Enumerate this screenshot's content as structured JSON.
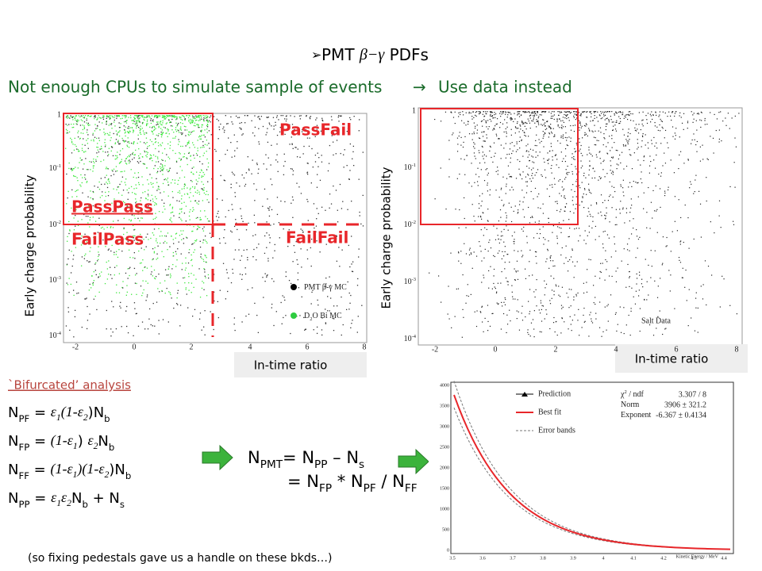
{
  "header": {
    "title": [
      [
        "PMT ",
        ""
      ],
      [
        "β−γ",
        "it"
      ],
      [
        " PDFs",
        ""
      ]
    ],
    "subtitle_left": "Not enough CPUs to simulate sample of events",
    "subtitle_right": "Use data instead"
  },
  "left_plot": {
    "ylabel": "Early charge probability",
    "xlabel": "In-time ratio",
    "yticks": [
      "1",
      [
        [
          "10",
          ""
        ],
        [
          "-1",
          "sup"
        ]
      ],
      [
        [
          "10",
          ""
        ],
        [
          "-2",
          "sup"
        ]
      ],
      [
        [
          "10",
          ""
        ],
        [
          "-3",
          "sup"
        ]
      ],
      [
        [
          "10",
          ""
        ],
        [
          "-4",
          "sup"
        ]
      ]
    ],
    "xticks": [
      "-2",
      "0",
      "2",
      "4",
      "6",
      "8"
    ],
    "regions": {
      "pass_fail": "PassFail",
      "pass_pass": "PassPass",
      "fail_pass": "FailPass",
      "fail_fail": "FailFail"
    },
    "legend": [
      [
        [
          "PMT β-γ MC",
          ""
        ]
      ],
      [
        [
          "D",
          ""
        ],
        [
          "2",
          "sub"
        ],
        [
          "O Bi MC",
          ""
        ]
      ]
    ]
  },
  "right_plot": {
    "ylabel": "Early charge probability",
    "xlabel": "In-time ratio",
    "yticks": [
      "1",
      [
        [
          "10",
          ""
        ],
        [
          "-1",
          "sup"
        ]
      ],
      [
        [
          "10",
          ""
        ],
        [
          "-2",
          "sup"
        ]
      ],
      [
        [
          "10",
          ""
        ],
        [
          "-3",
          "sup"
        ]
      ],
      [
        [
          "10",
          ""
        ],
        [
          "-4",
          "sup"
        ]
      ]
    ],
    "xticks": [
      "-2",
      "0",
      "2",
      "4",
      "6",
      "8"
    ],
    "note": "Salt Data"
  },
  "analysis": {
    "heading": "`Bifurcated’ analysis",
    "equations": [
      [
        [
          "N",
          ""
        ],
        [
          "PF",
          "sub"
        ],
        [
          " = ",
          ""
        ],
        [
          "ε",
          "it"
        ],
        [
          "1",
          "itsub"
        ],
        [
          "(1-",
          "it"
        ],
        [
          "ε",
          "it"
        ],
        [
          "2",
          "itsub"
        ],
        [
          ")",
          ""
        ],
        [
          "N",
          ""
        ],
        [
          "b",
          "sub"
        ]
      ],
      [
        [
          "N",
          ""
        ],
        [
          "FP",
          "sub"
        ],
        [
          " = ",
          ""
        ],
        [
          "(1-",
          "it"
        ],
        [
          "ε",
          "it"
        ],
        [
          "1",
          "itsub"
        ],
        [
          ") ",
          ""
        ],
        [
          "ε",
          "it"
        ],
        [
          "2",
          "itsub"
        ],
        [
          "N",
          ""
        ],
        [
          "b",
          "sub"
        ]
      ],
      [
        [
          "N",
          ""
        ],
        [
          "FF",
          "sub"
        ],
        [
          " = ",
          ""
        ],
        [
          "(1-",
          "it"
        ],
        [
          "ε",
          "it"
        ],
        [
          "1",
          "itsub"
        ],
        [
          ")(1-",
          "it"
        ],
        [
          "ε",
          "it"
        ],
        [
          "2",
          "itsub"
        ],
        [
          ")",
          ""
        ],
        [
          "N",
          ""
        ],
        [
          "b",
          "sub"
        ]
      ],
      [
        [
          "N",
          ""
        ],
        [
          "PP",
          "sub"
        ],
        [
          " = ",
          ""
        ],
        [
          "ε",
          "it"
        ],
        [
          "1",
          "itsub"
        ],
        [
          "ε",
          "it"
        ],
        [
          "2",
          "itsub"
        ],
        [
          "N",
          ""
        ],
        [
          "b",
          "sub"
        ],
        [
          " + N",
          ""
        ],
        [
          "s",
          "sub"
        ]
      ]
    ]
  },
  "result": [
    [
      [
        "N",
        ""
      ],
      [
        "PMT",
        "sub"
      ],
      [
        "= N",
        ""
      ],
      [
        "PP",
        "sub"
      ],
      [
        " – N",
        ""
      ],
      [
        "s",
        "sub"
      ]
    ],
    [
      [
        "= N",
        ""
      ],
      [
        "FP",
        "sub"
      ],
      [
        " * N",
        ""
      ],
      [
        "PF",
        "sub"
      ],
      [
        " / N",
        ""
      ],
      [
        "FF",
        "sub"
      ]
    ]
  ],
  "fit_plot": {
    "legend": [
      "Prediction",
      "Best fit",
      "Error bands"
    ],
    "stats": [
      [
        [
          [
            "χ",
            ""
          ],
          [
            "2",
            "sup"
          ],
          [
            " / ndf",
            ""
          ]
        ],
        "3.307 / 8"
      ],
      [
        [
          "Norm"
        ],
        "3906 ± 321.2"
      ],
      [
        [
          "Exponent"
        ],
        "-6.367 ± 0.4134"
      ]
    ],
    "yticks": [
      "4000",
      "3500",
      "3000",
      "2500",
      "2000",
      "1500",
      "1000",
      "500",
      "0"
    ],
    "xticks": [
      "3.5",
      "3.6",
      "3.7",
      "3.8",
      "3.9",
      "4",
      "4.1",
      "4.2",
      "4.3",
      "4.4"
    ],
    "xlabel": "Kinetic Energy / MeV"
  },
  "footnote": "(so fixing pedestals gave us a handle on these bkds…)"
}
